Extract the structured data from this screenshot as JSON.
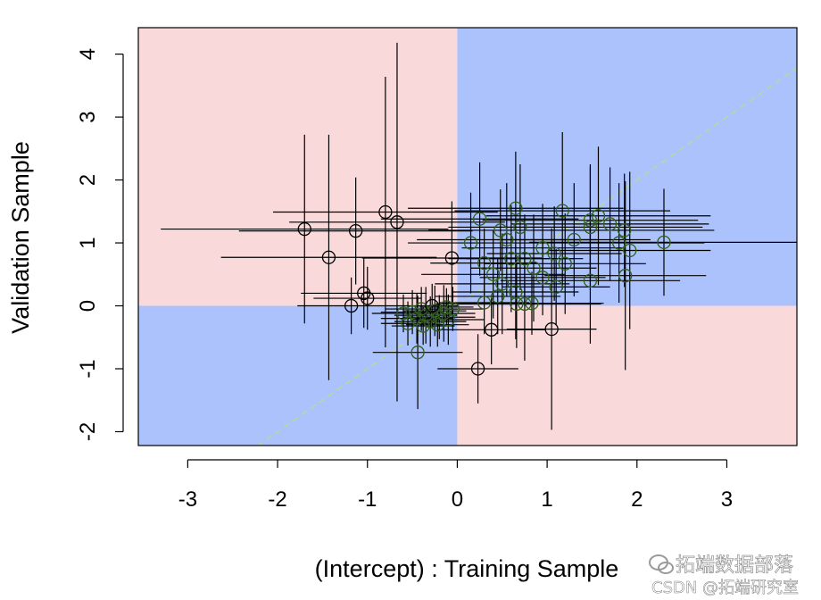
{
  "chart_data": {
    "type": "scatter",
    "title": "",
    "xlabel": "(Intercept) : Training Sample",
    "ylabel": "Validation Sample",
    "xlim": [
      -3.55,
      3.78
    ],
    "ylim": [
      -2.22,
      4.42
    ],
    "x_ticks": [
      -3,
      -2,
      -1,
      0,
      1,
      2,
      3
    ],
    "y_ticks": [
      -2,
      -1,
      0,
      1,
      2,
      3,
      4
    ],
    "grid": false,
    "legend": "none",
    "background_regions": {
      "agreement_color": "#abc2fc",
      "disagreement_color": "#f9d9d9"
    },
    "reference_line": {
      "slope": 1,
      "intercept": 0,
      "color": "#b7d99a",
      "style": "dashed"
    },
    "marker_colors": {
      "disagree": "#000000",
      "agree": "#2f5f1a"
    },
    "points": [
      {
        "x": -1.7,
        "y": 1.22,
        "xerr": 1.6,
        "yerr": 1.5
      },
      {
        "x": -1.43,
        "y": 0.77,
        "xerr": 1.2,
        "yerr": 1.95
      },
      {
        "x": -1.13,
        "y": 1.19,
        "xerr": 1.3,
        "yerr": 0.85
      },
      {
        "x": -1.04,
        "y": 0.2,
        "xerr": 0.7,
        "yerr": 0.55
      },
      {
        "x": -1.0,
        "y": 0.12,
        "xerr": 0.6,
        "yerr": 0.5
      },
      {
        "x": -0.8,
        "y": 1.49,
        "xerr": 1.25,
        "yerr": 2.15
      },
      {
        "x": -0.67,
        "y": 1.33,
        "xerr": 1.2,
        "yerr": 2.85
      },
      {
        "x": -0.06,
        "y": 0.76,
        "xerr": 1.0,
        "yerr": 0.9
      },
      {
        "x": 0.23,
        "y": -1.0,
        "xerr": 0.45,
        "yerr": 0.55
      },
      {
        "x": 0.38,
        "y": -0.38,
        "xerr": 0.6,
        "yerr": 0.55
      },
      {
        "x": 1.05,
        "y": -0.37,
        "xerr": 0.5,
        "yerr": 1.6
      },
      {
        "x": 0.66,
        "y": 0.03,
        "xerr": 0.9,
        "yerr": 0.7
      },
      {
        "x": 0.75,
        "y": 0.03,
        "xerr": 0.85,
        "yerr": 0.9
      },
      {
        "x": 0.83,
        "y": 0.04,
        "xerr": 0.8,
        "yerr": 0.5
      },
      {
        "x": -1.18,
        "y": 0.0,
        "xerr": 0.6,
        "yerr": 0.45
      },
      {
        "x": -0.44,
        "y": -0.74,
        "xerr": 0.5,
        "yerr": 0.9
      },
      {
        "x": 0.25,
        "y": 1.38,
        "xerr": 1.1,
        "yerr": 0.9
      },
      {
        "x": 0.65,
        "y": 1.55,
        "xerr": 1.2,
        "yerr": 0.9
      },
      {
        "x": 1.17,
        "y": 1.51,
        "xerr": 1.2,
        "yerr": 1.25
      },
      {
        "x": 1.48,
        "y": 1.36,
        "xerr": 1.2,
        "yerr": 0.85
      },
      {
        "x": 1.57,
        "y": 1.43,
        "xerr": 1.25,
        "yerr": 1.1
      },
      {
        "x": 1.7,
        "y": 1.3,
        "xerr": 1.1,
        "yerr": 0.9
      },
      {
        "x": 1.86,
        "y": 1.2,
        "xerr": 1.0,
        "yerr": 0.9
      },
      {
        "x": 1.8,
        "y": 1.0,
        "xerr": 0.95,
        "yerr": 0.95
      },
      {
        "x": 1.92,
        "y": 0.88,
        "xerr": 0.9,
        "yerr": 1.25
      },
      {
        "x": 2.3,
        "y": 1.01,
        "xerr": 1.5,
        "yerr": 0.85
      },
      {
        "x": 1.48,
        "y": 1.25,
        "xerr": 1.25,
        "yerr": 1.0
      },
      {
        "x": 1.48,
        "y": 0.4,
        "xerr": 1.0,
        "yerr": 1.0
      },
      {
        "x": 1.87,
        "y": 0.48,
        "xerr": 0.9,
        "yerr": 1.5
      },
      {
        "x": 1.2,
        "y": 0.67,
        "xerr": 0.9,
        "yerr": 0.8
      },
      {
        "x": 1.08,
        "y": 0.83,
        "xerr": 0.75,
        "yerr": 0.75
      },
      {
        "x": 0.95,
        "y": 0.92,
        "xerr": 0.9,
        "yerr": 0.7
      },
      {
        "x": 0.55,
        "y": 1.05,
        "xerr": 1.0,
        "yerr": 0.9
      },
      {
        "x": 0.48,
        "y": 1.2,
        "xerr": 0.8,
        "yerr": 0.65
      },
      {
        "x": 0.6,
        "y": 0.75,
        "xerr": 0.7,
        "yerr": 0.85
      },
      {
        "x": 0.75,
        "y": 0.75,
        "xerr": 0.65,
        "yerr": 0.7
      },
      {
        "x": 0.3,
        "y": 0.68,
        "xerr": 0.6,
        "yerr": 0.55
      },
      {
        "x": 0.85,
        "y": 0.6,
        "xerr": 0.7,
        "yerr": 0.85
      },
      {
        "x": 0.4,
        "y": 0.5,
        "xerr": 0.8,
        "yerr": 0.7
      },
      {
        "x": 0.95,
        "y": 0.45,
        "xerr": 0.7,
        "yerr": 0.6
      },
      {
        "x": 0.5,
        "y": 0.35,
        "xerr": 0.75,
        "yerr": 0.8
      },
      {
        "x": 1.1,
        "y": 0.3,
        "xerr": 0.6,
        "yerr": 0.6
      },
      {
        "x": 0.65,
        "y": 0.22,
        "xerr": 0.7,
        "yerr": 0.75
      },
      {
        "x": 0.45,
        "y": 0.15,
        "xerr": 0.7,
        "yerr": 0.6
      },
      {
        "x": 0.3,
        "y": 0.05,
        "xerr": 0.5,
        "yerr": 0.5
      },
      {
        "x": 0.15,
        "y": 1.0,
        "xerr": 0.7,
        "yerr": 0.8
      },
      {
        "x": 0.7,
        "y": 1.25,
        "xerr": 0.8,
        "yerr": 1.0
      },
      {
        "x": 1.3,
        "y": 1.05,
        "xerr": 0.85,
        "yerr": 0.9
      },
      {
        "x": -0.5,
        "y": -0.1,
        "xerr": 0.35,
        "yerr": 0.35
      },
      {
        "x": -0.45,
        "y": -0.2,
        "xerr": 0.4,
        "yerr": 0.4
      },
      {
        "x": -0.4,
        "y": -0.05,
        "xerr": 0.4,
        "yerr": 0.35
      },
      {
        "x": -0.35,
        "y": -0.15,
        "xerr": 0.35,
        "yerr": 0.45
      },
      {
        "x": -0.3,
        "y": -0.25,
        "xerr": 0.4,
        "yerr": 0.4
      },
      {
        "x": -0.25,
        "y": -0.08,
        "xerr": 0.35,
        "yerr": 0.4
      },
      {
        "x": -0.2,
        "y": -0.18,
        "xerr": 0.4,
        "yerr": 0.35
      },
      {
        "x": -0.15,
        "y": -0.12,
        "xerr": 0.35,
        "yerr": 0.45
      },
      {
        "x": -0.1,
        "y": -0.22,
        "xerr": 0.4,
        "yerr": 0.4
      },
      {
        "x": -0.05,
        "y": -0.05,
        "xerr": 0.35,
        "yerr": 0.35
      },
      {
        "x": -0.55,
        "y": -0.28,
        "xerr": 0.3,
        "yerr": 0.35
      },
      {
        "x": -0.38,
        "y": -0.32,
        "xerr": 0.35,
        "yerr": 0.3
      },
      {
        "x": -0.22,
        "y": -0.3,
        "xerr": 0.35,
        "yerr": 0.35
      },
      {
        "x": -0.12,
        "y": -0.02,
        "xerr": 0.3,
        "yerr": 0.3
      },
      {
        "x": -0.6,
        "y": -0.12,
        "xerr": 0.35,
        "yerr": 0.3
      },
      {
        "x": -0.28,
        "y": 0.0,
        "xerr": 0.3,
        "yerr": 0.35
      }
    ],
    "watermark": [
      "拓端数据部落",
      "CSDN @拓端研究室"
    ]
  }
}
